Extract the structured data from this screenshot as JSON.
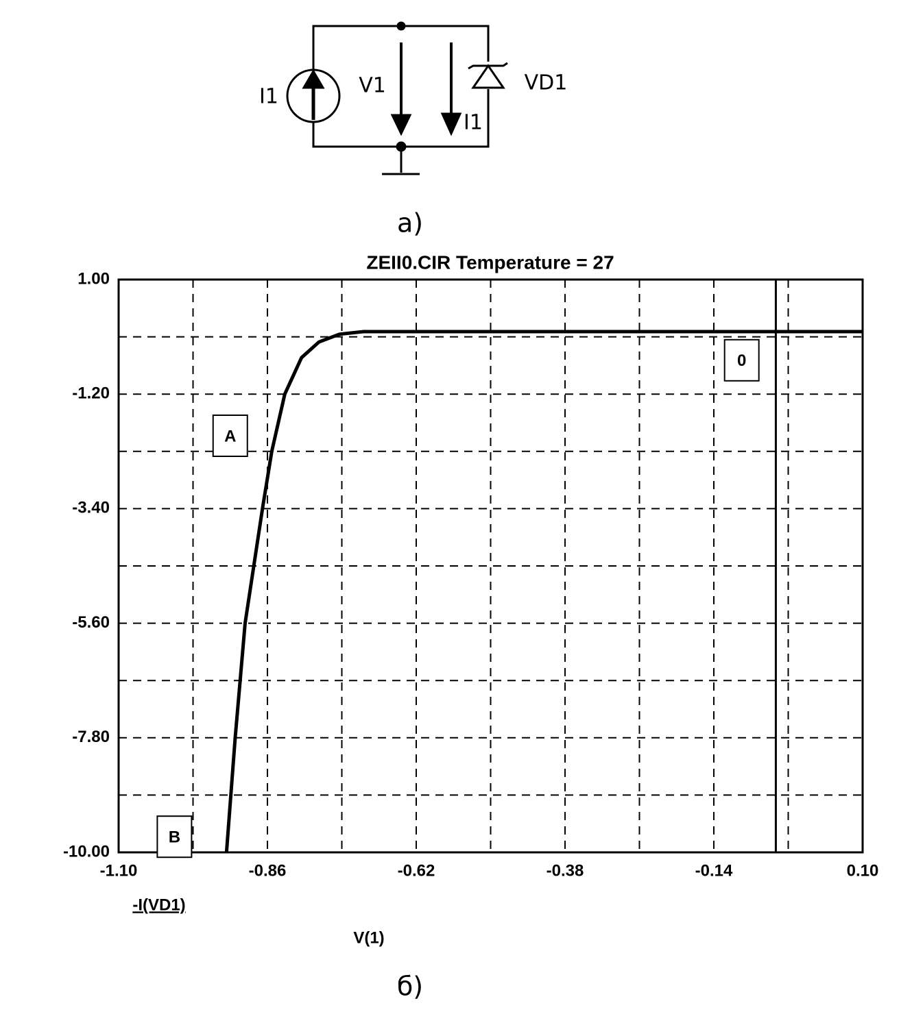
{
  "diagram": {
    "source_label": "I1",
    "voltage_label": "V1",
    "diode_label": "VD1",
    "current_label": "I1",
    "caption_a": "а)",
    "caption_b": "б)"
  },
  "chart_data": {
    "type": "line",
    "title": "ZEII0.CIR Temperature = 27",
    "x_label": "V(1)",
    "y_label": "-I(VD1)",
    "xlim": [
      -1.1,
      0.1
    ],
    "ylim": [
      -10,
      1
    ],
    "xticks": [
      {
        "value": -1.1,
        "label": "-1.10"
      },
      {
        "value": -0.86,
        "label": "-0.86"
      },
      {
        "value": -0.62,
        "label": "-0.62"
      },
      {
        "value": -0.38,
        "label": "-0.38"
      },
      {
        "value": -0.14,
        "label": "-0.14"
      },
      {
        "value": 0.1,
        "label": "0.10"
      }
    ],
    "yticks": [
      {
        "value": 1,
        "label": "1.00"
      },
      {
        "value": -1.2,
        "label": "-1.20"
      },
      {
        "value": -3.4,
        "label": "-3.40"
      },
      {
        "value": -5.6,
        "label": "-5.60"
      },
      {
        "value": -7.8,
        "label": "-7.80"
      },
      {
        "value": -10,
        "label": "-10.00"
      }
    ],
    "minor_xticks": [
      -0.98,
      -0.74,
      -0.5,
      -0.26,
      -0.02
    ],
    "minor_yticks": [
      -0.1,
      -2.3,
      -4.5,
      -6.7,
      -8.9
    ],
    "grid": true,
    "series": [
      {
        "color": "#000000",
        "x": [
          -0.926,
          -0.912,
          -0.896,
          -0.868,
          -0.853,
          -0.832,
          -0.805,
          -0.777,
          -0.744,
          -0.705,
          0.1
        ],
        "values": [
          -10,
          -7.8,
          -5.6,
          -3.4,
          -2.3,
          -1.2,
          -0.5,
          -0.2,
          -0.05,
          0,
          0
        ]
      }
    ],
    "cursor_x": -0.04,
    "annotations": [
      {
        "text": "A",
        "x": -0.92,
        "y": -2.0
      },
      {
        "text": "B",
        "x": -1.01,
        "y": -9.7
      },
      {
        "text": "0",
        "x": -0.095,
        "y": -0.55
      }
    ]
  }
}
